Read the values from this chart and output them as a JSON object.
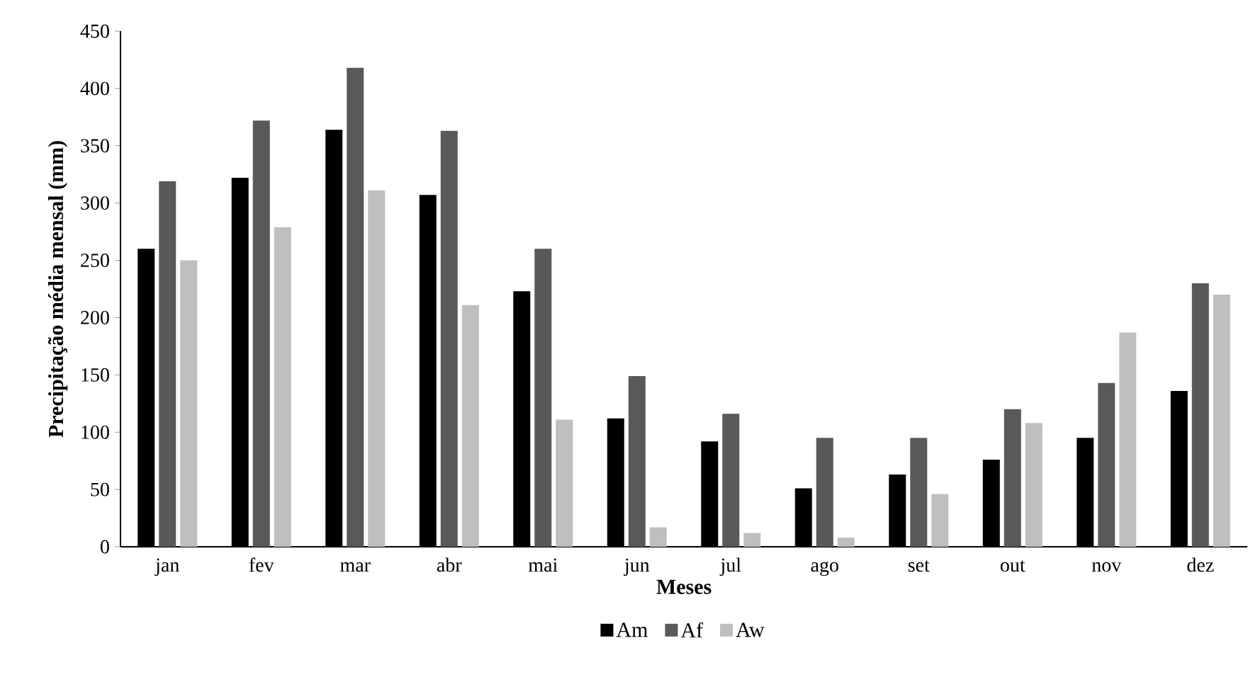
{
  "chart_data": {
    "type": "bar",
    "xlabel": "Meses",
    "ylabel": "Precipitação média mensal (mm)",
    "categories": [
      "jan",
      "fev",
      "mar",
      "abr",
      "mai",
      "jun",
      "jul",
      "ago",
      "set",
      "out",
      "nov",
      "dez"
    ],
    "series": [
      {
        "name": "Am",
        "color": "#000000",
        "values": [
          260,
          322,
          364,
          307,
          223,
          112,
          92,
          51,
          63,
          76,
          95,
          136
        ]
      },
      {
        "name": "Af",
        "color": "#595959",
        "values": [
          319,
          372,
          418,
          363,
          260,
          149,
          116,
          95,
          95,
          120,
          143,
          230
        ]
      },
      {
        "name": "Aw",
        "color": "#bfbfbf",
        "values": [
          250,
          279,
          311,
          211,
          111,
          17,
          12,
          8,
          46,
          108,
          187,
          220
        ]
      }
    ],
    "ylim": [
      0,
      450
    ],
    "yticks": [
      0,
      50,
      100,
      150,
      200,
      250,
      300,
      350,
      400,
      450
    ],
    "legend": "bottom"
  }
}
